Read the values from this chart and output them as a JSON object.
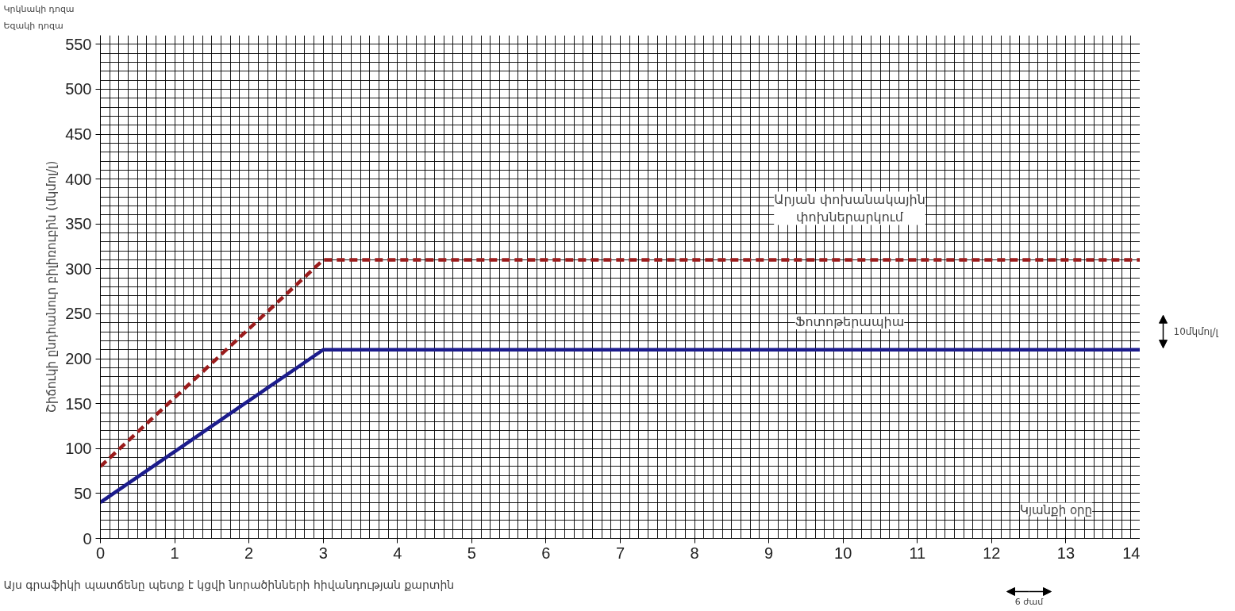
{
  "chart_data": {
    "type": "line",
    "ylabel": "Շիճուկի ընդհանուր բիլիռուբին (մկմոլ/լ)",
    "x": [
      0,
      3,
      14
    ],
    "series": [
      {
        "color": "#9b1c1c",
        "values": [
          80,
          310,
          310
        ],
        "line_style": "dashed"
      },
      {
        "color": "#1c1c8c",
        "values": [
          40,
          210,
          210
        ],
        "line_style": "solid"
      }
    ],
    "xlim": [
      0,
      14
    ],
    "ylim": [
      0,
      560
    ],
    "xticks": [
      0,
      1,
      2,
      3,
      4,
      5,
      6,
      7,
      8,
      9,
      10,
      11,
      12,
      13,
      14
    ],
    "yticks": [
      0,
      50,
      100,
      150,
      200,
      250,
      300,
      350,
      400,
      450,
      500,
      550
    ],
    "grid": true,
    "marker": "none",
    "annotations": [
      "Կրկնակի դոզա",
      "Եզակի դոզա",
      "Արյան փոխանակային\nփոխներարկում",
      "Ֆոտոթերապիա",
      "Կյանքի օրը",
      "10մկմոլ/լ",
      "6 ժամ",
      "Այս գրաֆիկի պատճենը պետք է կցվի նորածինների հիվանդության քարտին"
    ]
  }
}
